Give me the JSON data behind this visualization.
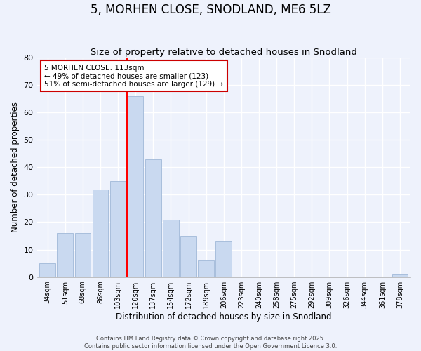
{
  "title": "5, MORHEN CLOSE, SNODLAND, ME6 5LZ",
  "subtitle": "Size of property relative to detached houses in Snodland",
  "xlabel": "Distribution of detached houses by size in Snodland",
  "ylabel": "Number of detached properties",
  "categories": [
    "34sqm",
    "51sqm",
    "68sqm",
    "86sqm",
    "103sqm",
    "120sqm",
    "137sqm",
    "154sqm",
    "172sqm",
    "189sqm",
    "206sqm",
    "223sqm",
    "240sqm",
    "258sqm",
    "275sqm",
    "292sqm",
    "309sqm",
    "326sqm",
    "344sqm",
    "361sqm",
    "378sqm"
  ],
  "values": [
    5,
    16,
    16,
    32,
    35,
    66,
    43,
    21,
    15,
    6,
    13,
    0,
    0,
    0,
    0,
    0,
    0,
    0,
    0,
    0,
    1
  ],
  "bar_color": "#c9d9f0",
  "bar_edge_color": "#a0b8d8",
  "red_line_x": 4.5,
  "annotation_text": "5 MORHEN CLOSE: 113sqm\n← 49% of detached houses are smaller (123)\n51% of semi-detached houses are larger (129) →",
  "annotation_box_color": "#ffffff",
  "annotation_box_edge_color": "#cc0000",
  "ylim": [
    0,
    80
  ],
  "yticks": [
    0,
    10,
    20,
    30,
    40,
    50,
    60,
    70,
    80
  ],
  "background_color": "#eef2fc",
  "grid_color": "#ffffff",
  "footer_line1": "Contains HM Land Registry data © Crown copyright and database right 2025.",
  "footer_line2": "Contains public sector information licensed under the Open Government Licence 3.0.",
  "title_fontsize": 12,
  "subtitle_fontsize": 9.5
}
